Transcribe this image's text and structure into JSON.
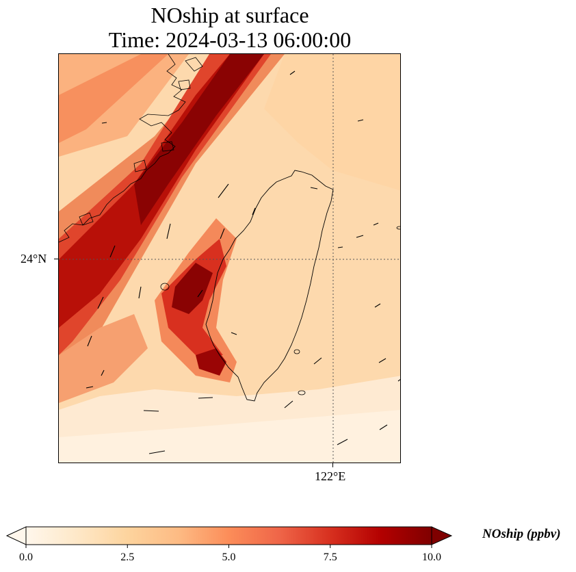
{
  "title": {
    "line1": "NOship at surface",
    "line2": "Time: 2024-03-13 06:00:00"
  },
  "axes": {
    "lat_tick_label": "24°N",
    "lon_tick_label": "122°E",
    "gridlines": "dotted"
  },
  "colorbar": {
    "label": "NOship (ppbv)",
    "ticks": [
      "0.0",
      "2.5",
      "5.0",
      "7.5",
      "10.0"
    ],
    "min": 0,
    "max": 10,
    "extend": "both",
    "colormap": [
      "#fff7ec",
      "#fee8c8",
      "#fdd49e",
      "#fdbb84",
      "#fc8d59",
      "#ef6548",
      "#d7301f",
      "#b30000",
      "#7f0000"
    ]
  },
  "map": {
    "field": "NOship",
    "units": "ppbv",
    "features": [
      "Taiwan coastline",
      "China coastline",
      "wind vectors"
    ]
  }
}
